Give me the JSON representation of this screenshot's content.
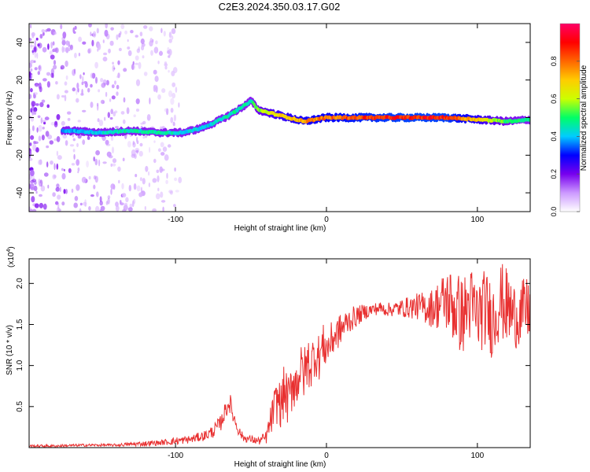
{
  "page_title": "C2E3.2024.350.03.17.G02",
  "chart_data": [
    {
      "type": "heatmap",
      "xlabel": "Height of straight line (km)",
      "ylabel": "Frequency (Hz)",
      "xlim": [
        -197,
        135
      ],
      "ylim": [
        -50,
        50
      ],
      "xticks": [
        -100,
        0,
        100
      ],
      "xtick_labels": [
        "-100",
        "0",
        "100"
      ],
      "yticks": [
        -40,
        -20,
        0,
        20,
        40
      ],
      "ytick_labels": [
        "-40",
        "-20",
        "0",
        "20",
        "40"
      ],
      "grid": false,
      "colorbar": {
        "label": "Normalized spectral amplitude",
        "range": [
          0,
          1
        ],
        "ticks": [
          0.0,
          0.2,
          0.4,
          0.6,
          0.8
        ],
        "tick_labels": [
          "0.0",
          "0.2",
          "0.4",
          "0.6",
          "0.8"
        ],
        "colormap": [
          "#ffffff",
          "#cc99ff",
          "#7700ee",
          "#0000ff",
          "#00ccff",
          "#00ff66",
          "#ccff00",
          "#ffcc00",
          "#ff6600",
          "#ff0000",
          "#ff0066"
        ]
      },
      "ridge": {
        "x": [
          -170,
          -150,
          -130,
          -110,
          -95,
          -85,
          -75,
          -65,
          -55,
          -50,
          -45,
          -40,
          -35,
          -25,
          -15,
          0,
          20,
          50,
          80,
          100,
          120,
          135
        ],
        "y": [
          -7,
          -8,
          -7,
          -8,
          -8,
          -6,
          -3,
          1,
          6,
          9,
          4,
          3,
          2,
          0,
          -2,
          0,
          0,
          0,
          0,
          -1,
          -2,
          -1
        ],
        "amplitude": [
          0.4,
          0.45,
          0.5,
          0.5,
          0.45,
          0.45,
          0.45,
          0.5,
          0.5,
          0.5,
          0.6,
          0.65,
          0.7,
          0.75,
          0.8,
          0.85,
          0.9,
          0.95,
          0.95,
          0.75,
          0.55,
          0.5
        ]
      }
    },
    {
      "type": "line",
      "xlabel": "Height of straight line (km)",
      "ylabel": "SNR (10 * v/v)",
      "y_multiplier_label": "(x10",
      "y_multiplier_exp": "4",
      "y_multiplier_close": ")",
      "xlim": [
        -197,
        135
      ],
      "ylim": [
        0,
        2.3
      ],
      "xticks": [
        -100,
        0,
        100
      ],
      "xtick_labels": [
        "-100",
        "0",
        "100"
      ],
      "yticks": [
        0.5,
        1.0,
        1.5,
        2.0
      ],
      "ytick_labels": [
        "0.5",
        "1.0",
        "1.5",
        "2.0"
      ],
      "grid": false,
      "series": [
        {
          "color": "#e83030",
          "x": [
            -197,
            -180,
            -160,
            -140,
            -120,
            -110,
            -100,
            -90,
            -80,
            -75,
            -70,
            -68,
            -66,
            -64,
            -62,
            -60,
            -58,
            -55,
            -50,
            -45,
            -40,
            -38,
            -35,
            -32,
            -30,
            -28,
            -25,
            -22,
            -20,
            -18,
            -15,
            -12,
            -10,
            -8,
            -5,
            -2,
            0,
            5,
            10,
            15,
            20,
            25,
            30,
            35,
            40,
            50,
            60,
            70,
            75,
            80,
            85,
            90,
            95,
            100,
            105,
            110,
            115,
            120,
            125,
            130,
            135
          ],
          "y": [
            0.02,
            0.02,
            0.03,
            0.03,
            0.05,
            0.06,
            0.08,
            0.1,
            0.15,
            0.2,
            0.3,
            0.4,
            0.5,
            0.55,
            0.4,
            0.3,
            0.2,
            0.12,
            0.1,
            0.08,
            0.12,
            0.25,
            0.45,
            0.6,
            0.5,
            0.7,
            0.55,
            0.85,
            0.75,
            0.95,
            0.9,
            1.05,
            1.0,
            1.15,
            1.1,
            1.25,
            1.2,
            1.35,
            1.45,
            1.55,
            1.6,
            1.65,
            1.68,
            1.7,
            1.68,
            1.7,
            1.72,
            1.7,
            1.75,
            1.8,
            1.7,
            1.6,
            1.75,
            1.6,
            1.7,
            1.55,
            1.8,
            1.7,
            1.6,
            1.65,
            1.7
          ],
          "noise": [
            0.01,
            0.01,
            0.01,
            0.01,
            0.02,
            0.02,
            0.03,
            0.03,
            0.04,
            0.05,
            0.06,
            0.06,
            0.08,
            0.08,
            0.06,
            0.05,
            0.04,
            0.03,
            0.03,
            0.03,
            0.05,
            0.1,
            0.15,
            0.18,
            0.18,
            0.2,
            0.2,
            0.22,
            0.22,
            0.2,
            0.2,
            0.2,
            0.2,
            0.18,
            0.18,
            0.16,
            0.15,
            0.14,
            0.12,
            0.1,
            0.08,
            0.06,
            0.05,
            0.05,
            0.05,
            0.07,
            0.1,
            0.15,
            0.2,
            0.25,
            0.3,
            0.3,
            0.3,
            0.3,
            0.3,
            0.3,
            0.3,
            0.3,
            0.25,
            0.25,
            0.25
          ]
        }
      ]
    }
  ]
}
